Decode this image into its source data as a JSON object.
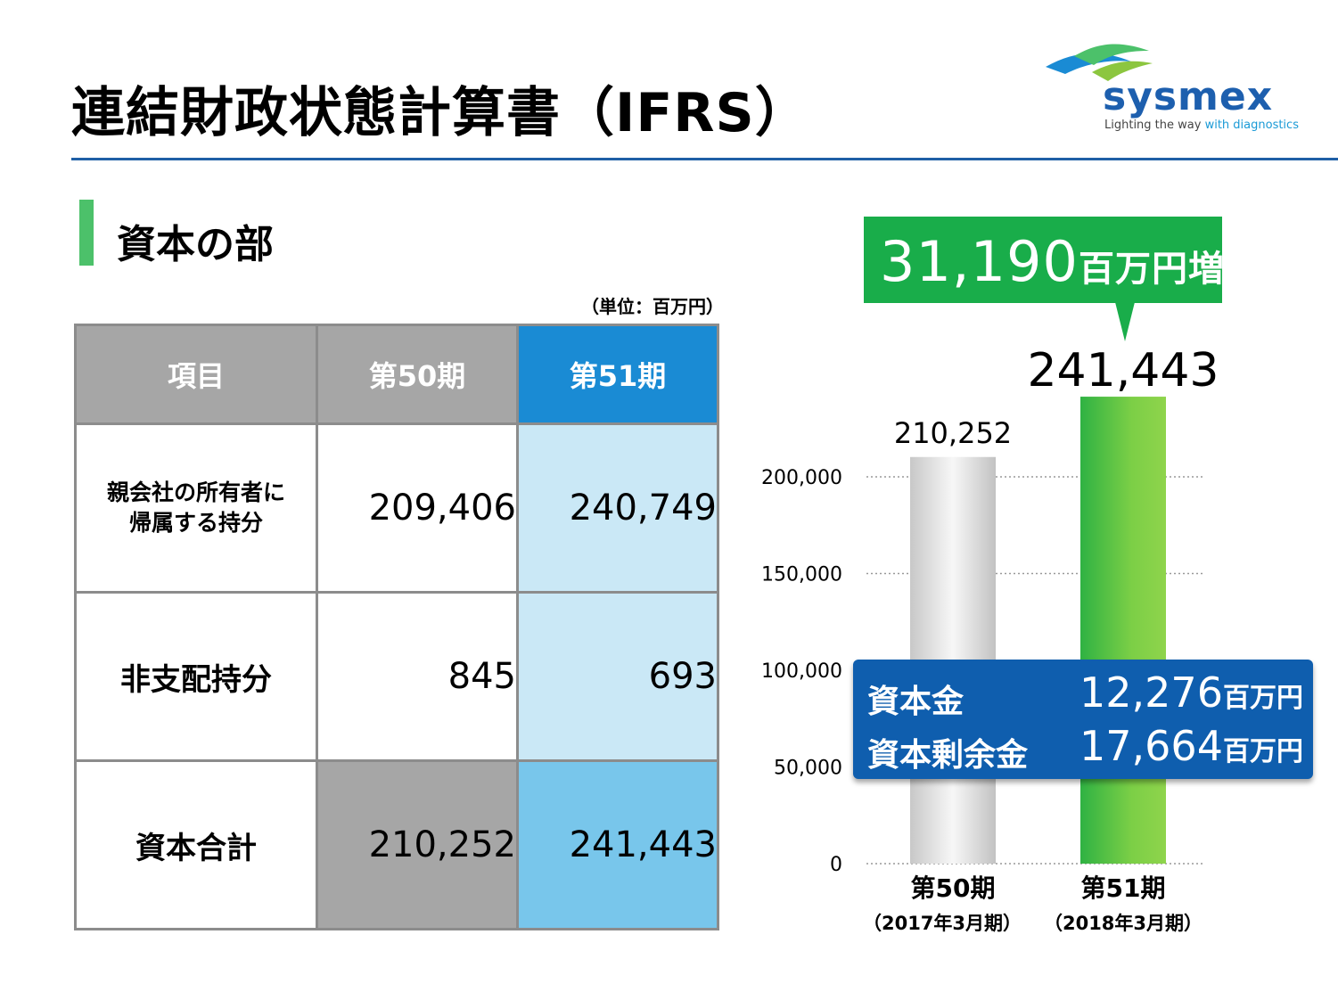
{
  "header": {
    "title": "連結財政状態計算書（IFRS）"
  },
  "logo": {
    "wordmark": "sysmex",
    "tagline_prefix": "Lighting the way ",
    "tagline_accent": "with diagnostics"
  },
  "section": {
    "title": "資本の部"
  },
  "table": {
    "unit": "（単位：百万円）",
    "columns": [
      "項目",
      "第50期",
      "第51期"
    ],
    "rows": [
      {
        "label_line1": "親会社の所有者に",
        "label_line2": "帰属する持分",
        "p50": "209,406",
        "p51": "240,749"
      },
      {
        "label": "非支配持分",
        "p50": "845",
        "p51": "693"
      },
      {
        "label": "資本合計",
        "p50": "210,252",
        "p51": "241,443"
      }
    ]
  },
  "callout": {
    "value": "31,190",
    "suffix": "百万円増"
  },
  "capital_box": [
    {
      "label": "資本金",
      "value": "12,276",
      "suffix": "百万円"
    },
    {
      "label": "資本剰余金",
      "value": "17,664",
      "suffix": "百万円"
    }
  ],
  "colors": {
    "title_rule": "#1f5fa6",
    "section_bar": "#4cc16a",
    "header_gray": "#a6a6a6",
    "header_blue": "#1a8bd4",
    "light_blue": "#cae8f6",
    "mid_blue": "#78c6eb",
    "callout_green": "#19ad4a",
    "box_blue": "#0f5eae"
  },
  "chart_data": {
    "type": "bar",
    "categories": [
      "第50期",
      "第51期"
    ],
    "subcategories": [
      "（2017年3月期）",
      "（2018年3月期）"
    ],
    "values": [
      210252,
      241443
    ],
    "value_labels": [
      "210,252",
      "241,443"
    ],
    "yticks": [
      0,
      50000,
      100000,
      150000,
      200000
    ],
    "ytick_labels": [
      "0",
      "50,000",
      "100,000",
      "150,000",
      "200,000"
    ],
    "ylim": [
      0,
      241443
    ],
    "grid": true,
    "title": "",
    "xlabel": "",
    "ylabel": ""
  }
}
